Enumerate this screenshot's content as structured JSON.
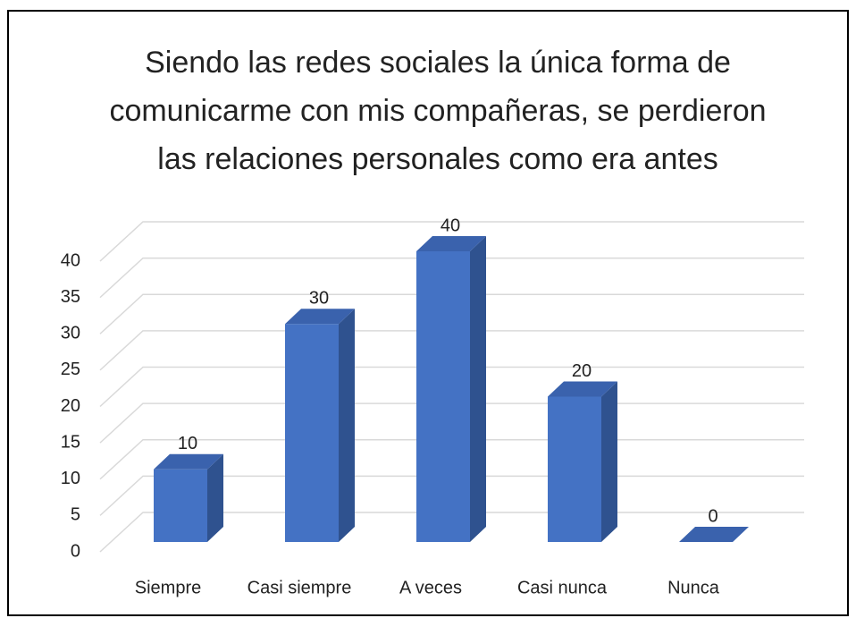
{
  "chart_data": {
    "type": "bar",
    "title": [
      "Siendo las redes sociales la única forma de",
      "comunicarme con mis compañeras, se perdieron",
      "las relaciones personales como era antes"
    ],
    "categories": [
      "Siempre",
      "Casi siempre",
      "A veces",
      "Casi nunca",
      "Nunca"
    ],
    "values": [
      10,
      30,
      40,
      20,
      0
    ],
    "color": "#4472c4",
    "ylim": [
      0,
      40
    ],
    "yticks": [
      0,
      5,
      10,
      15,
      20,
      25,
      30,
      35,
      40
    ],
    "grid": true
  }
}
